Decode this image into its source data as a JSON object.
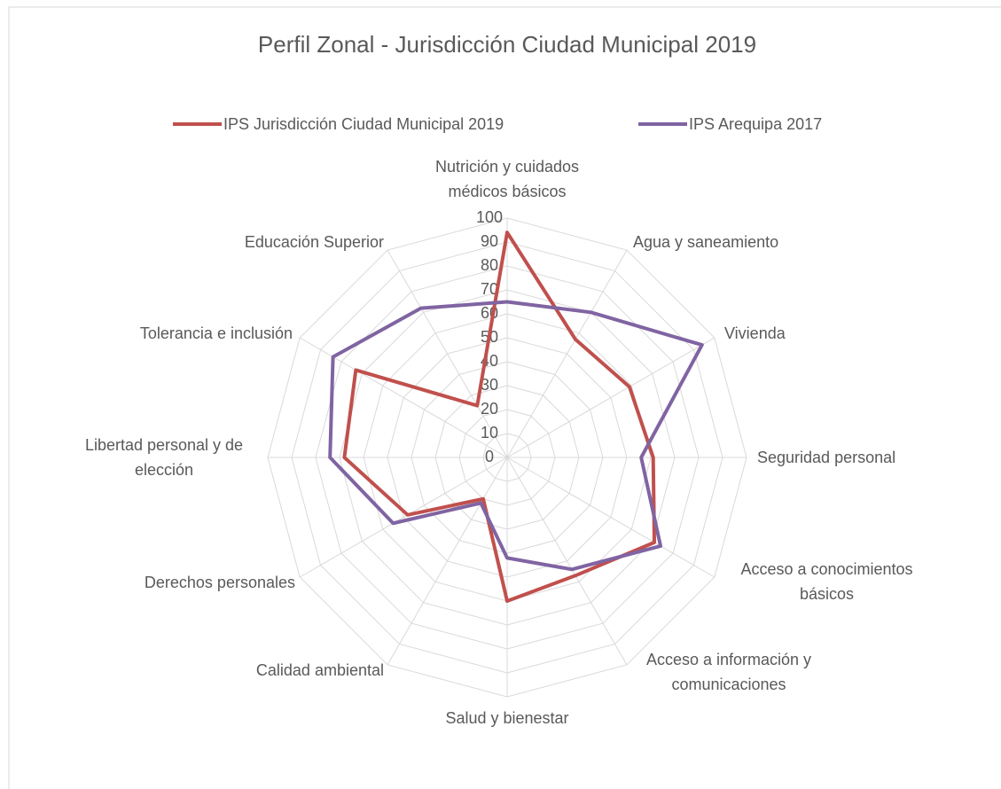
{
  "chart_data": {
    "type": "radar",
    "title": "Perfil Zonal - Jurisdicción Ciudad Municipal 2019",
    "categories": [
      "Nutrición y cuidados médicos básicos",
      "Agua y saneamiento",
      "Vivienda",
      "Seguridad personal",
      "Acceso a conocimientos básicos",
      "Acceso a información y comunicaciones",
      "Salud y bienestar",
      "Calidad ambiental",
      "Derechos personales",
      "Libertad personal y de elección",
      "Tolerancia e inclusión",
      "Educación Superior"
    ],
    "series": [
      {
        "name": "IPS Jurisdicción Ciudad Municipal 2019",
        "color": "#c0504d",
        "values": [
          94,
          57,
          59,
          61,
          71,
          57,
          60,
          20,
          48,
          68,
          73,
          25
        ]
      },
      {
        "name": "IPS Arequipa 2017",
        "color": "#8064a2",
        "values": [
          65,
          70,
          94,
          56,
          74,
          54,
          42,
          22,
          55,
          74,
          84,
          72
        ]
      }
    ],
    "rlim": [
      0,
      100
    ],
    "rticks": [
      0,
      10,
      20,
      30,
      40,
      50,
      60,
      70,
      80,
      90,
      100
    ],
    "grid": true,
    "legend": "top"
  }
}
